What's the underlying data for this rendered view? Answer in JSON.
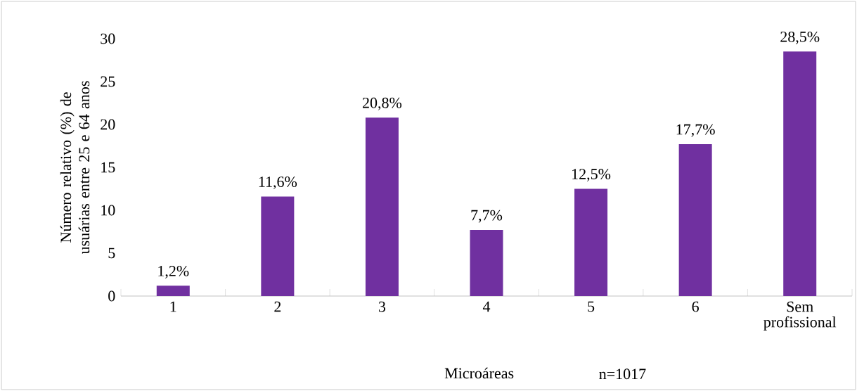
{
  "chart_data": {
    "type": "bar",
    "xlabel": "Microáreas",
    "ylabel": "Número relativo (%) de usuárias entre 25 e 64 anos",
    "categories": [
      "1",
      "2",
      "3",
      "4",
      "5",
      "6",
      "Sem profissional"
    ],
    "values": [
      1.2,
      11.6,
      20.8,
      7.7,
      12.5,
      17.7,
      28.5
    ],
    "value_labels": [
      "1,2%",
      "11,6%",
      "20,8%",
      "7,7%",
      "12,5%",
      "17,7%",
      "28,5%"
    ],
    "color": "#7030a0",
    "ylim": [
      0,
      30
    ],
    "yticks": [
      0,
      5,
      10,
      15,
      20,
      25,
      30
    ],
    "grid": false,
    "annotations": [
      "n=1017"
    ]
  }
}
